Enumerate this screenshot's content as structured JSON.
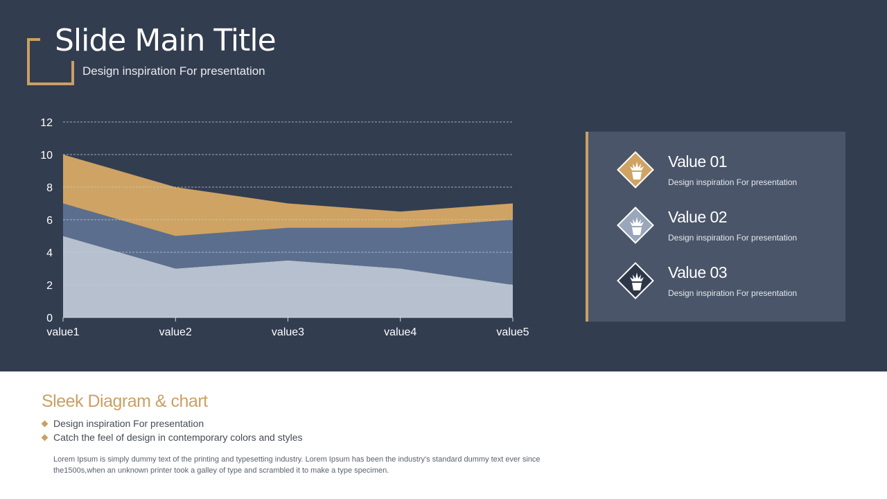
{
  "slide": {
    "title": "Slide Main Title",
    "subtitle": "Design inspiration For presentation"
  },
  "colors": {
    "background_dark": "#333d50",
    "accent_gold": "#c9a064",
    "series_light": "#b6c0ce",
    "series_mid": "#5b6e8d",
    "series_gold": "#cfa363",
    "panel": "#4a5569"
  },
  "chart_data": {
    "type": "area",
    "stacked": true,
    "categories": [
      "value1",
      "value2",
      "value3",
      "value4",
      "value5"
    ],
    "series": [
      {
        "values": [
          5,
          3,
          3.5,
          3,
          2
        ],
        "color": "#b6c0ce"
      },
      {
        "values": [
          2,
          2,
          2,
          2.5,
          4
        ],
        "color": "#5b6e8d"
      },
      {
        "values": [
          3,
          3,
          1.5,
          1,
          1
        ],
        "color": "#cfa363"
      }
    ],
    "ylim": [
      0,
      12
    ],
    "yticks": [
      0,
      2,
      4,
      6,
      8,
      10,
      12
    ],
    "grid": true
  },
  "legend": [
    {
      "title": "Value 01",
      "desc": "Design inspiration For presentation",
      "color": "#cfa363",
      "icon": "plant-icon"
    },
    {
      "title": "Value 02",
      "desc": "Design inspiration For presentation",
      "color": "#9aa6bb",
      "icon": "plant-icon"
    },
    {
      "title": "Value 03",
      "desc": "Design inspiration For presentation",
      "color": "#2e3748",
      "icon": "plant-icon"
    }
  ],
  "bottom": {
    "title": "Sleek Diagram & chart",
    "bullets": [
      "Design inspiration For presentation",
      "Catch the feel of design in contemporary colors and styles"
    ],
    "body": "Lorem Ipsum is simply dummy text of the printing and typesetting industry. Lorem Ipsum has been the industry's  standard dummy text ever since the1500s,when an unknown printer took a galley of type and scrambled it to make a type specimen."
  }
}
